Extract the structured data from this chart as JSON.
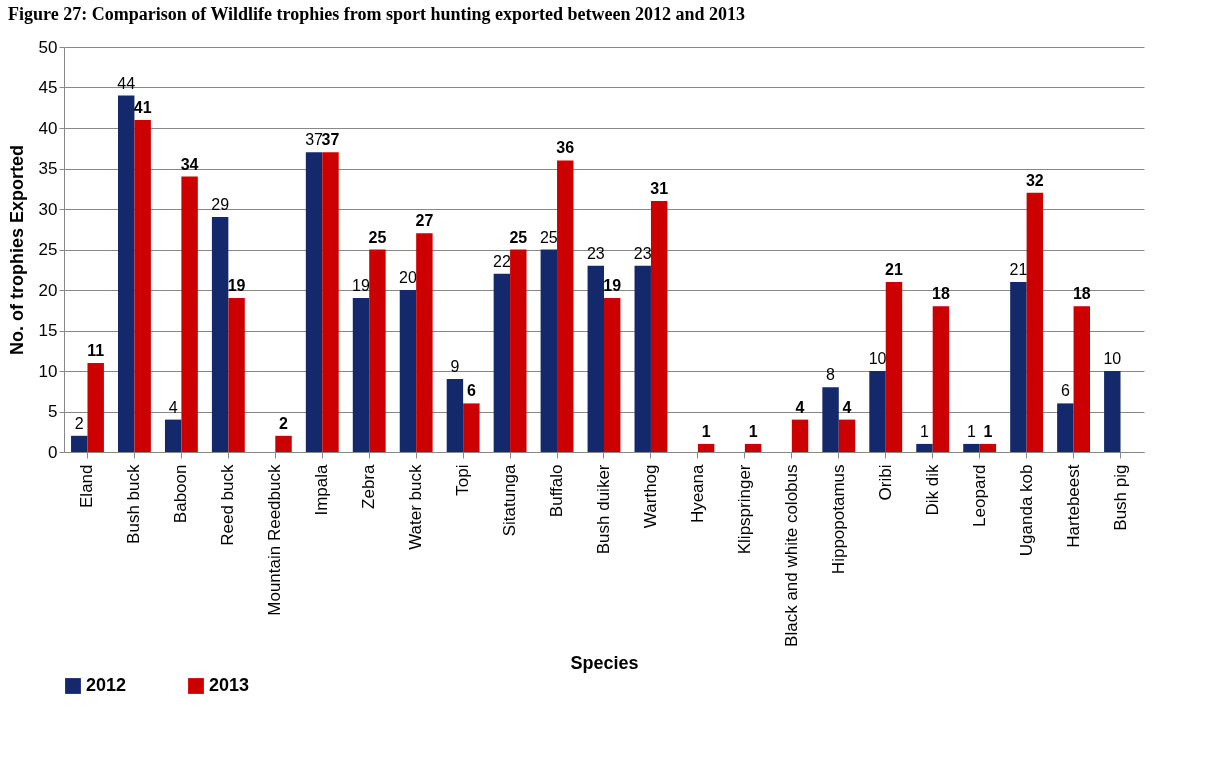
{
  "chart_data": {
    "type": "bar",
    "title": "Figure 27: Comparison of Wildlife trophies from sport hunting exported between 2012 and 2013",
    "xlabel": "Species",
    "ylabel": "No. of trophies Exported",
    "categories": [
      "Eland",
      "Bush buck",
      "Baboon",
      "Reed buck",
      "Mountain Reedbuck",
      "Impala",
      "Zebra",
      "Water buck",
      "Topi",
      "Sitatunga",
      "Buffalo",
      "Bush duiker",
      "Warthog",
      "Hyeana",
      "Klipspringer",
      "Black and white colobus",
      "Hippopotamus",
      "Oribi",
      "Dik dik",
      "Leopard",
      "Uganda kob",
      "Hartebeest",
      "Bush pig"
    ],
    "series": [
      {
        "name": "2012",
        "color": "#14296b",
        "values": [
          2,
          44,
          4,
          29,
          null,
          37,
          19,
          20,
          9,
          22,
          25,
          23,
          23,
          null,
          null,
          null,
          8,
          10,
          1,
          1,
          21,
          6,
          10
        ]
      },
      {
        "name": "2013",
        "color": "#cc0000",
        "values": [
          11,
          41,
          34,
          19,
          2,
          37,
          25,
          27,
          6,
          25,
          36,
          19,
          31,
          1,
          1,
          4,
          4,
          21,
          18,
          1,
          32,
          18,
          null
        ]
      }
    ],
    "ylim": [
      0,
      50
    ],
    "yticks": [
      0,
      5,
      10,
      15,
      20,
      25,
      30,
      35,
      40,
      45,
      50
    ],
    "grid": "y",
    "legend": "bottom",
    "data_labels": true
  }
}
